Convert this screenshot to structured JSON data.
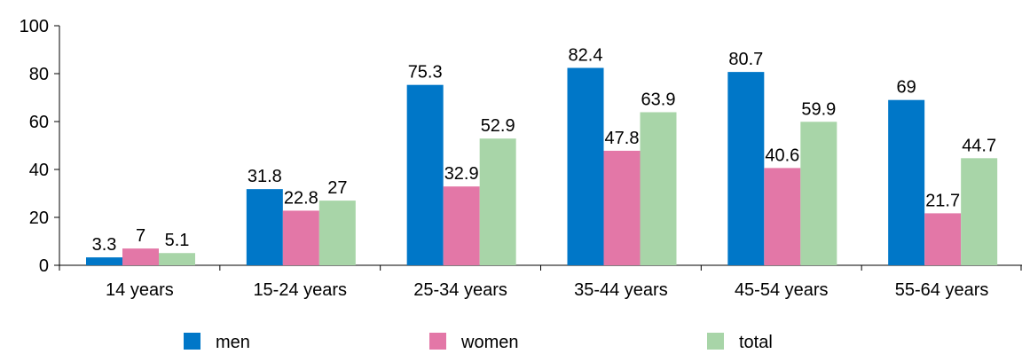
{
  "chart_data": {
    "type": "bar",
    "categories": [
      "14 years",
      "15-24 years",
      "25-34 years",
      "35-44 years",
      "45-54 years",
      "55-64 years"
    ],
    "series": [
      {
        "name": "men",
        "color": "#0077c8",
        "values": [
          3.3,
          31.8,
          75.3,
          82.4,
          80.7,
          69
        ]
      },
      {
        "name": "women",
        "color": "#e377a7",
        "values": [
          7,
          22.8,
          32.9,
          47.8,
          40.6,
          21.7
        ]
      },
      {
        "name": "total",
        "color": "#a8d5a8",
        "values": [
          5.1,
          27,
          52.9,
          63.9,
          59.9,
          44.7
        ]
      }
    ],
    "data_labels": [
      [
        "3.3",
        "31.8",
        "75.3",
        "82.4",
        "80.7",
        "69"
      ],
      [
        "7",
        "22.8",
        "32.9",
        "47.8",
        "40.6",
        "21.7"
      ],
      [
        "5.1",
        "27",
        "52.9",
        "63.9",
        "59.9",
        "44.7"
      ]
    ],
    "ylim": [
      0,
      100
    ],
    "yticks": [
      0,
      20,
      40,
      60,
      80,
      100
    ],
    "ytick_labels": [
      "0",
      "20",
      "40",
      "60",
      "80",
      "100"
    ],
    "grid": false,
    "legend_position": "bottom"
  }
}
